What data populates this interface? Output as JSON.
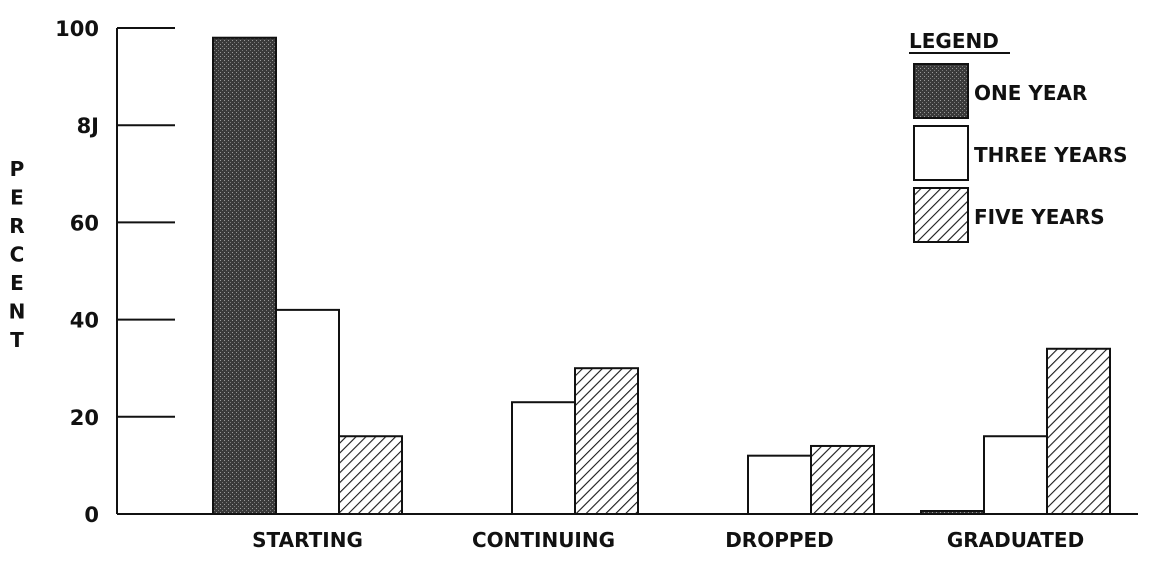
{
  "chart_data": {
    "type": "bar",
    "title": "",
    "xlabel": "",
    "ylabel": "PERCENT",
    "ylim": [
      0,
      100
    ],
    "yticks": [
      "0",
      "20",
      "40",
      "60",
      "8Ј",
      "100"
    ],
    "grid": false,
    "legend": {
      "title": "LEGEND",
      "placement": "top-right"
    },
    "categories": [
      "STARTING",
      "CONTINUING",
      "DROPPED",
      "GRADUATED"
    ],
    "series": [
      {
        "name": "ONE YEAR",
        "pattern": "dotted-dark",
        "values": [
          98,
          0,
          0,
          0.5
        ]
      },
      {
        "name": "THREE YEARS",
        "pattern": "white",
        "values": [
          42,
          23,
          12,
          16
        ]
      },
      {
        "name": "FIVE YEARS",
        "pattern": "hatched",
        "values": [
          16,
          30,
          14,
          34
        ]
      }
    ],
    "colors": {
      "ink": "#111111",
      "dark_fill": "#2e2e2e",
      "hatch": "#1a1a1a"
    }
  }
}
